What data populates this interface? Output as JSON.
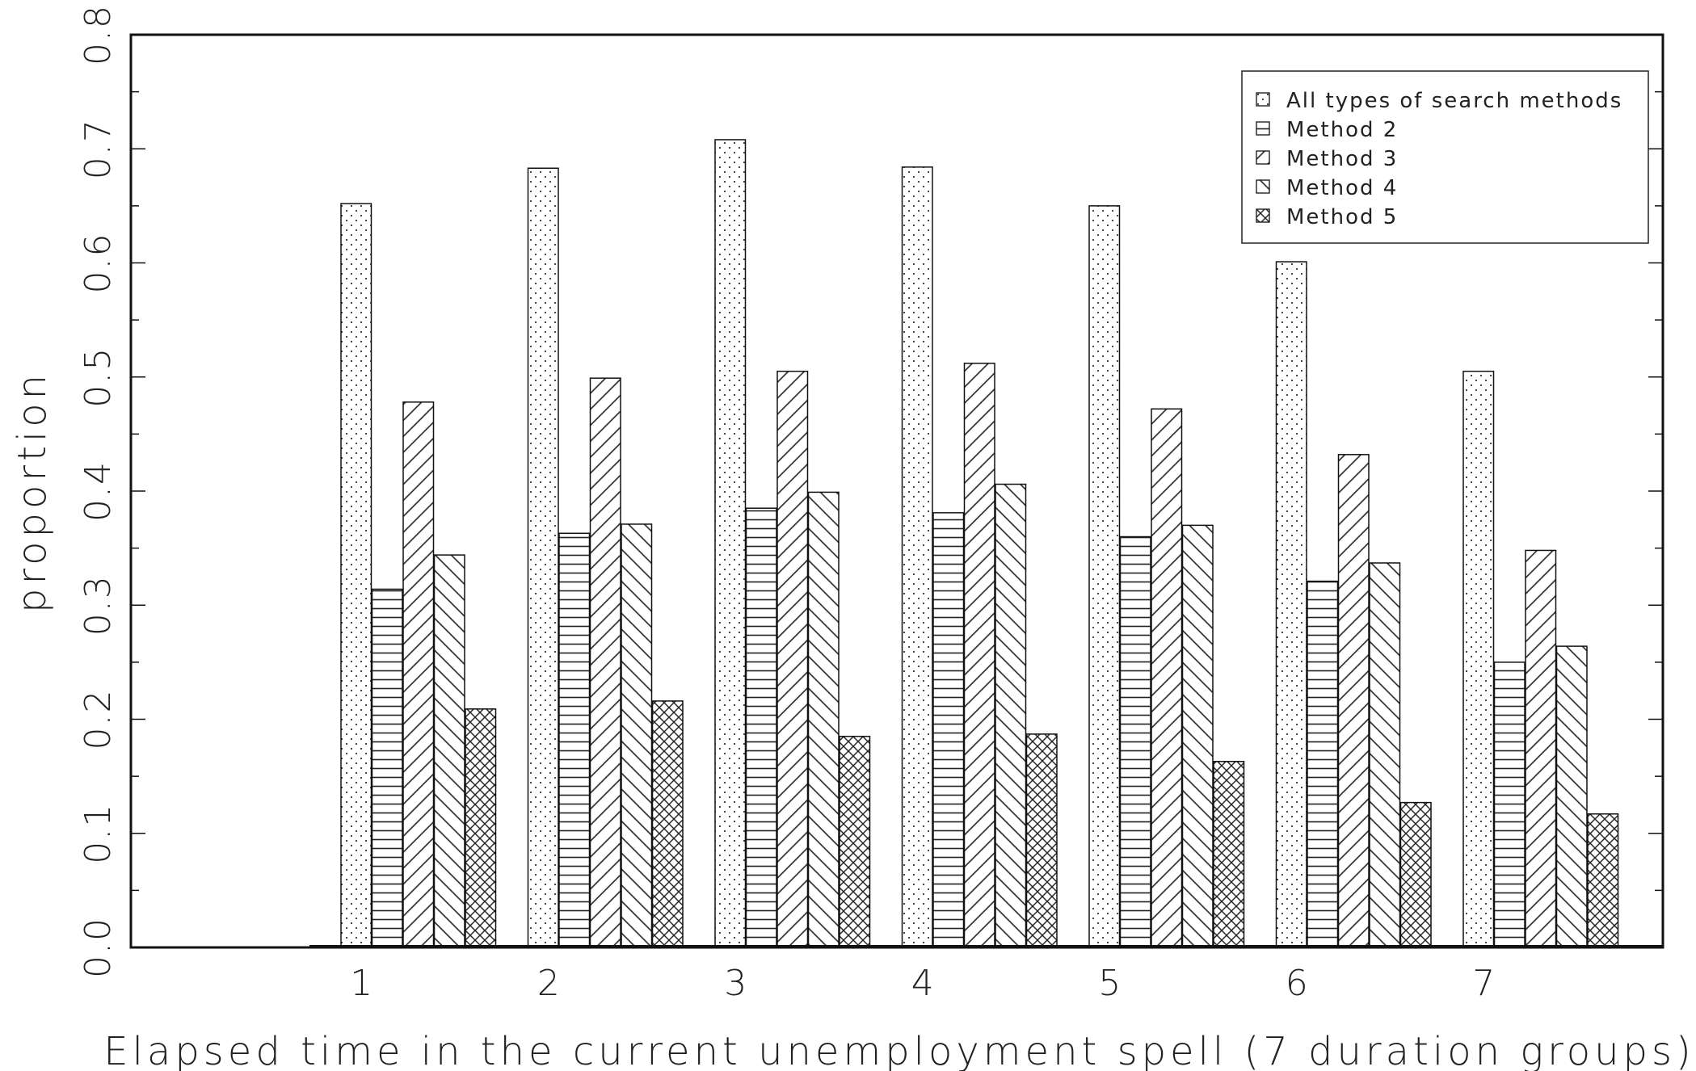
{
  "chart_data": {
    "type": "bar",
    "title": "",
    "xlabel": "Elapsed time in the current unemployment spell (7 duration groups)",
    "ylabel": "proportion",
    "categories": [
      "1",
      "2",
      "3",
      "4",
      "5",
      "6",
      "7"
    ],
    "ylim": [
      0,
      0.8
    ],
    "yticks": [
      "0.0",
      "0.1",
      "0.2",
      "0.3",
      "0.4",
      "0.5",
      "0.6",
      "0.7",
      "0.8"
    ],
    "legend_position": "top-right",
    "grid": false,
    "series": [
      {
        "name": "All types of search methods",
        "pattern": "dots",
        "values": [
          0.652,
          0.683,
          0.708,
          0.684,
          0.65,
          0.601,
          0.505
        ]
      },
      {
        "name": "Method 2",
        "pattern": "horizontal-lines",
        "values": [
          0.314,
          0.363,
          0.385,
          0.381,
          0.36,
          0.321,
          0.25
        ]
      },
      {
        "name": "Method 3",
        "pattern": "forward-diagonal",
        "values": [
          0.478,
          0.499,
          0.505,
          0.512,
          0.472,
          0.432,
          0.348
        ]
      },
      {
        "name": "Method 4",
        "pattern": "back-diagonal",
        "values": [
          0.344,
          0.371,
          0.399,
          0.406,
          0.37,
          0.337,
          0.264
        ]
      },
      {
        "name": "Method 5",
        "pattern": "crosshatch",
        "values": [
          0.209,
          0.216,
          0.185,
          0.187,
          0.163,
          0.127,
          0.117
        ]
      }
    ]
  }
}
